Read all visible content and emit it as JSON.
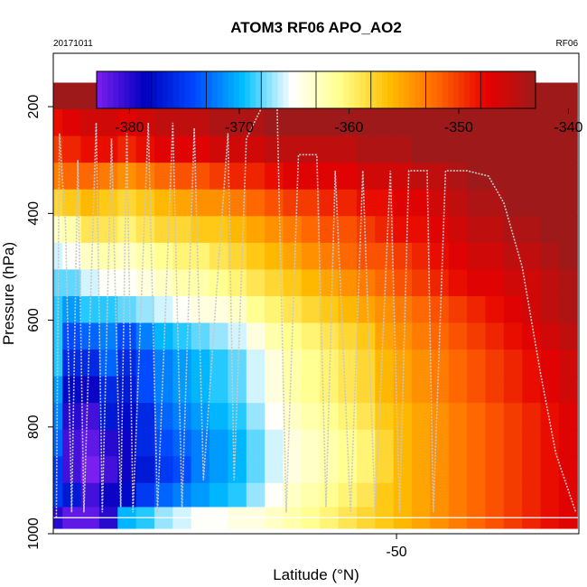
{
  "chart_data": {
    "type": "heatmap",
    "title": "ATOM3 RF06 APO_AO2",
    "date_label": "20171011",
    "flight_label": "RF06",
    "xlabel": "Latitude (°N)",
    "ylabel": "Pressure (hPa)",
    "xlim": [
      -72.4,
      -38.1
    ],
    "ylim": [
      1000,
      100
    ],
    "x_ticks": [
      -50
    ],
    "y_ticks": [
      200,
      400,
      600,
      800,
      1000
    ],
    "colorbar": {
      "range": [
        -383,
        -343
      ],
      "ticks": [
        -380,
        -370,
        -360,
        -350,
        -340
      ],
      "stops": [
        "#7b1ff0",
        "#0000bf",
        "#0047ff",
        "#00bfff",
        "#ffffff",
        "#ffff8c",
        "#ffbf00",
        "#ff6600",
        "#e60000",
        "#9e1a1a"
      ]
    },
    "grid": false,
    "cell_width_deg": 1.2,
    "pressure_levels": [
      180,
      230,
      280,
      330,
      380,
      430,
      480,
      530,
      580,
      630,
      680,
      730,
      780,
      830,
      880,
      930,
      970
    ],
    "cells": [
      {
        "lon": -72.4,
        "vals": [
          -341,
          -348,
          -350,
          -353,
          -358,
          -363,
          -366,
          -368,
          -369,
          -369,
          -369,
          -371,
          -372,
          -373,
          -375,
          -375,
          -380
        ]
      },
      {
        "lon": -71.2,
        "vals": [
          -341,
          -347,
          -349,
          -352,
          -357,
          -362,
          -365,
          -368,
          -371,
          -374,
          -376,
          -378,
          -380,
          -381,
          -381,
          -377,
          -382
        ]
      },
      {
        "lon": -70.0,
        "vals": [
          -341,
          -346,
          -348,
          -352,
          -356,
          -359,
          -363,
          -366,
          -369,
          -373,
          -376,
          -379,
          -381,
          -382,
          -383,
          -381,
          -382
        ]
      },
      {
        "lon": -68.8,
        "vals": [
          -341,
          -346,
          -348,
          -353,
          -357,
          -359,
          -362,
          -365,
          -369,
          -372,
          -373,
          -376,
          -377,
          -380,
          -381,
          -379,
          -380
        ]
      },
      {
        "lon": -67.6,
        "vals": [
          -341,
          -347,
          -349,
          -354,
          -358,
          -360,
          -363,
          -365,
          -368,
          -374,
          -376,
          -377,
          -378,
          -379,
          -379,
          -378,
          -370
        ]
      },
      {
        "lon": -66.4,
        "vals": [
          -341,
          -346,
          -348,
          -353,
          -357,
          -359,
          -362,
          -364,
          -367,
          -372,
          -374,
          -374,
          -376,
          -376,
          -377,
          -375,
          -369
        ]
      },
      {
        "lon": -65.2,
        "vals": [
          -341,
          -345,
          -347,
          -352,
          -356,
          -358,
          -361,
          -363,
          -366,
          -370,
          -372,
          -372,
          -373,
          -374,
          -375,
          -373,
          -367
        ]
      },
      {
        "lon": -64.0,
        "vals": [
          -341,
          -345,
          -347,
          -351,
          -355,
          -358,
          -360,
          -362,
          -365,
          -369,
          -371,
          -371,
          -372,
          -373,
          -374,
          -372,
          -366
        ]
      },
      {
        "lon": -62.8,
        "vals": [
          -341,
          -345,
          -347,
          -351,
          -354,
          -357,
          -360,
          -362,
          -364,
          -368,
          -370,
          -370,
          -371,
          -372,
          -372,
          -371,
          -365
        ]
      },
      {
        "lon": -61.6,
        "vals": [
          -341,
          -344,
          -346,
          -350,
          -354,
          -357,
          -359,
          -361,
          -364,
          -367,
          -369,
          -369,
          -370,
          -371,
          -371,
          -370,
          -365
        ]
      },
      {
        "lon": -60.4,
        "vals": [
          -341,
          -344,
          -346,
          -349,
          -353,
          -356,
          -358,
          -360,
          -363,
          -366,
          -368,
          -368,
          -369,
          -370,
          -370,
          -369,
          -364
        ]
      },
      {
        "lon": -59.2,
        "vals": [
          -341,
          -344,
          -346,
          -349,
          -352,
          -355,
          -357,
          -359,
          -361,
          -364,
          -366,
          -366,
          -367,
          -368,
          -368,
          -367,
          -364
        ]
      },
      {
        "lon": -58.0,
        "vals": [
          -341,
          -343,
          -345,
          -348,
          -351,
          -354,
          -356,
          -358,
          -360,
          -362,
          -364,
          -364,
          -365,
          -366,
          -366,
          -365,
          -363
        ]
      },
      {
        "lon": -56.8,
        "vals": [
          -341,
          -343,
          -345,
          -347,
          -350,
          -353,
          -355,
          -357,
          -359,
          -361,
          -362,
          -362,
          -363,
          -364,
          -364,
          -363,
          -362
        ]
      },
      {
        "lon": -55.6,
        "vals": [
          -341,
          -343,
          -345,
          -347,
          -350,
          -352,
          -354,
          -356,
          -358,
          -360,
          -361,
          -361,
          -362,
          -363,
          -363,
          -362,
          -361
        ]
      },
      {
        "lon": -54.4,
        "vals": [
          -341,
          -343,
          -345,
          -347,
          -349,
          -351,
          -353,
          -355,
          -357,
          -359,
          -360,
          -360,
          -361,
          -362,
          -362,
          -361,
          -360
        ]
      },
      {
        "lon": -53.2,
        "vals": [
          -341,
          -343,
          -345,
          -347,
          -349,
          -351,
          -352,
          -354,
          -356,
          -358,
          -359,
          -359,
          -360,
          -361,
          -361,
          -360,
          -359
        ]
      },
      {
        "lon": -52.0,
        "vals": [
          -341,
          -342,
          -344,
          -346,
          -348,
          -350,
          -351,
          -353,
          -355,
          -357,
          -358,
          -358,
          -359,
          -360,
          -360,
          -359,
          -358
        ]
      },
      {
        "lon": -50.8,
        "vals": [
          -341,
          -342,
          -344,
          -346,
          -348,
          -349,
          -351,
          -352,
          -354,
          -355,
          -356,
          -356,
          -357,
          -358,
          -358,
          -357,
          -357
        ]
      },
      {
        "lon": -49.6,
        "vals": [
          -341,
          -342,
          -344,
          -346,
          -347,
          -348,
          -350,
          -351,
          -353,
          -354,
          -355,
          -355,
          -356,
          -356,
          -356,
          -356,
          -356
        ]
      },
      {
        "lon": -48.4,
        "vals": [
          -341,
          -342,
          -343,
          -345,
          -347,
          -348,
          -349,
          -350,
          -352,
          -353,
          -354,
          -354,
          -355,
          -355,
          -355,
          -355,
          -355
        ]
      },
      {
        "lon": -47.2,
        "vals": [
          -341,
          -342,
          -343,
          -345,
          -346,
          -347,
          -348,
          -349,
          -351,
          -352,
          -353,
          -353,
          -354,
          -354,
          -354,
          -354,
          -354
        ]
      },
      {
        "lon": -46.0,
        "vals": [
          -341,
          -342,
          -343,
          -344,
          -345,
          -346,
          -347,
          -348,
          -350,
          -351,
          -352,
          -352,
          -353,
          -353,
          -353,
          -353,
          -353
        ]
      },
      {
        "lon": -44.8,
        "vals": [
          -341,
          -341,
          -342,
          -343,
          -344,
          -345,
          -346,
          -347,
          -349,
          -350,
          -351,
          -351,
          -352,
          -352,
          -352,
          -352,
          -352
        ]
      },
      {
        "lon": -43.6,
        "vals": [
          -341,
          -341,
          -342,
          -343,
          -344,
          -345,
          -346,
          -347,
          -348,
          -349,
          -350,
          -350,
          -351,
          -351,
          -351,
          -351,
          -351
        ]
      },
      {
        "lon": -42.4,
        "vals": [
          -341,
          -341,
          -342,
          -343,
          -343,
          -344,
          -345,
          -346,
          -347,
          -348,
          -349,
          -349,
          -350,
          -350,
          -350,
          -350,
          -350
        ]
      },
      {
        "lon": -41.2,
        "vals": [
          -341,
          -341,
          -341,
          -342,
          -343,
          -344,
          -345,
          -346,
          -346,
          -347,
          -348,
          -348,
          -349,
          -349,
          -349,
          -349,
          -349
        ]
      },
      {
        "lon": -40.0,
        "vals": [
          -341,
          -341,
          -341,
          -342,
          -342,
          -343,
          -344,
          -345,
          -345,
          -346,
          -347,
          -347,
          -348,
          -348,
          -348,
          -348,
          -348
        ]
      },
      {
        "lon": -38.8,
        "vals": [
          -341,
          -341,
          -341,
          -341,
          -342,
          -343,
          -343,
          -344,
          -344,
          -345,
          -346,
          -346,
          -347,
          -347,
          -347,
          -347,
          -347
        ]
      }
    ],
    "flight_track": [
      [
        -72.2,
        970
      ],
      [
        -72.0,
        250
      ],
      [
        -71.6,
        420
      ],
      [
        -71.2,
        960
      ],
      [
        -70.8,
        300
      ],
      [
        -70.4,
        960
      ],
      [
        -69.6,
        230
      ],
      [
        -69.2,
        960
      ],
      [
        -68.6,
        260
      ],
      [
        -68.0,
        950
      ],
      [
        -67.6,
        250
      ],
      [
        -67.2,
        960
      ],
      [
        -66.2,
        230
      ],
      [
        -65.6,
        960
      ],
      [
        -64.6,
        230
      ],
      [
        -64.0,
        950
      ],
      [
        -63.2,
        240
      ],
      [
        -62.6,
        900
      ],
      [
        -61.8,
        570
      ],
      [
        -61.0,
        250
      ],
      [
        -60.6,
        900
      ],
      [
        -59.8,
        260
      ],
      [
        -58.6,
        190
      ],
      [
        -57.8,
        190
      ],
      [
        -57.2,
        960
      ],
      [
        -56.4,
        290
      ],
      [
        -55.2,
        290
      ],
      [
        -54.6,
        950
      ],
      [
        -54.0,
        320
      ],
      [
        -53.0,
        960
      ],
      [
        -52.2,
        320
      ],
      [
        -51.4,
        960
      ],
      [
        -50.4,
        320
      ],
      [
        -49.8,
        960
      ],
      [
        -49.2,
        320
      ],
      [
        -48.0,
        320
      ],
      [
        -47.6,
        960
      ],
      [
        -46.8,
        320
      ],
      [
        -45.4,
        320
      ],
      [
        -44.0,
        330
      ],
      [
        -43.0,
        380
      ],
      [
        -41.8,
        500
      ],
      [
        -40.6,
        700
      ],
      [
        -39.6,
        850
      ],
      [
        -38.3,
        960
      ]
    ]
  }
}
